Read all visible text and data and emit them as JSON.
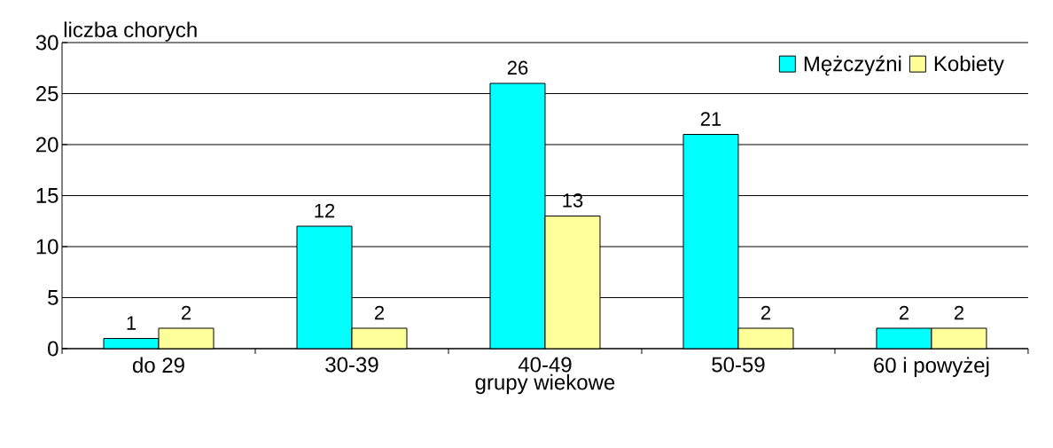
{
  "chart_data": {
    "type": "bar",
    "ylabel": "liczba chorych",
    "xlabel": "grupy wiekowe",
    "categories": [
      "do 29",
      "30-39",
      "40-49",
      "50-59",
      "60 i powyżej"
    ],
    "series": [
      {
        "name": "Mężczyźni",
        "color": "#00ffff",
        "values": [
          1,
          12,
          26,
          21,
          2
        ]
      },
      {
        "name": "Kobiety",
        "color": "#ffff99",
        "values": [
          2,
          2,
          13,
          2,
          2
        ]
      }
    ],
    "ylim": [
      0,
      30
    ],
    "yticks": [
      0,
      5,
      10,
      15,
      20,
      25,
      30
    ],
    "grid": "y",
    "legend": "top right",
    "data_labels": true
  }
}
